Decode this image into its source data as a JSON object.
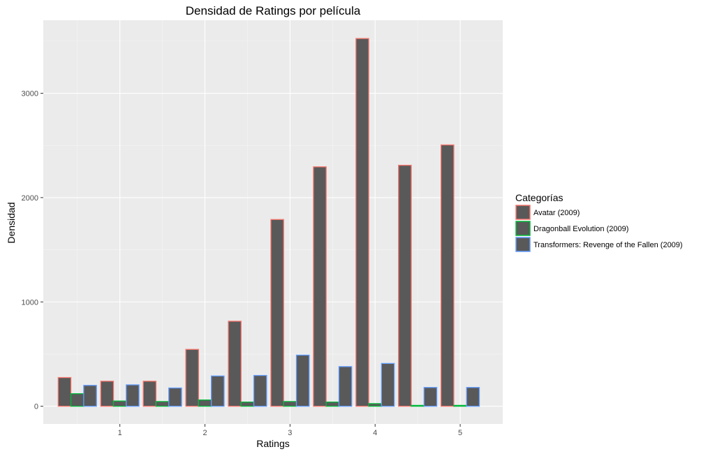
{
  "chart_data": {
    "type": "bar",
    "title": "Densidad de Ratings por película",
    "xlabel": "Ratings",
    "ylabel": "Densidad",
    "x": [
      0.5,
      1.0,
      1.5,
      2.0,
      2.5,
      3.0,
      3.5,
      4.0,
      4.5,
      5.0
    ],
    "x_ticks": [
      1,
      2,
      3,
      4,
      5
    ],
    "y_ticks": [
      0,
      1000,
      2000,
      3000
    ],
    "xlim": [
      0.1,
      5.5
    ],
    "ylim": [
      -170,
      3700
    ],
    "grid": true,
    "legend": {
      "title": "Categorías",
      "position": "right"
    },
    "bar_fill": "#595959",
    "panel_background": "#ebebeb",
    "series": [
      {
        "name": "Avatar (2009)",
        "color": "#f8766d",
        "values": [
          275,
          240,
          240,
          545,
          815,
          1790,
          2295,
          3525,
          2310,
          2505
        ]
      },
      {
        "name": "Dragonball Evolution (2009)",
        "color": "#00ba38",
        "values": [
          120,
          50,
          45,
          60,
          40,
          45,
          40,
          25,
          8,
          8
        ]
      },
      {
        "name": "Transformers: Revenge of the Fallen (2009)",
        "color": "#619cff",
        "values": [
          200,
          205,
          175,
          290,
          295,
          490,
          380,
          410,
          180,
          180
        ]
      }
    ]
  }
}
